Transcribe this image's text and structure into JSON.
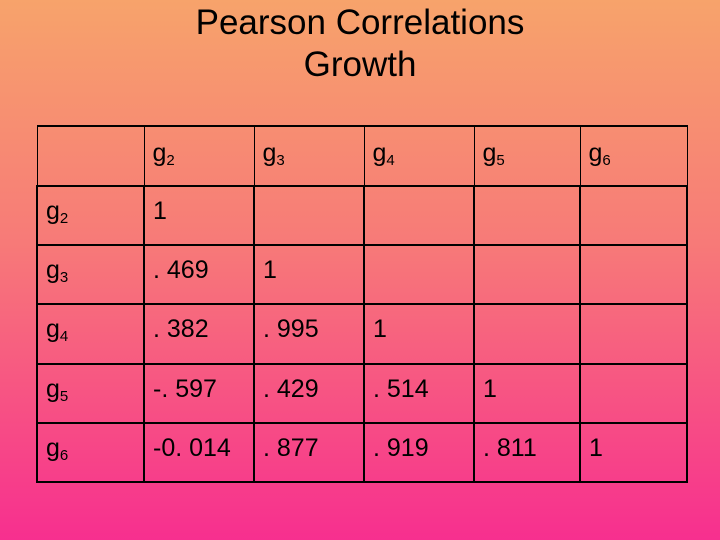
{
  "title": {
    "line1": "Pearson Correlations",
    "line2": "Growth"
  },
  "table": {
    "columns": [
      {
        "base": "g",
        "sub": "2"
      },
      {
        "base": "g",
        "sub": "3"
      },
      {
        "base": "g",
        "sub": "4"
      },
      {
        "base": "g",
        "sub": "5"
      },
      {
        "base": "g",
        "sub": "6"
      }
    ],
    "rows": [
      {
        "label": {
          "base": "g",
          "sub": "2"
        },
        "cells": [
          "1",
          "",
          "",
          "",
          ""
        ]
      },
      {
        "label": {
          "base": "g",
          "sub": "3"
        },
        "cells": [
          ". 469",
          "1",
          "",
          "",
          ""
        ]
      },
      {
        "label": {
          "base": "g",
          "sub": "4"
        },
        "cells": [
          ". 382",
          ". 995",
          "1",
          "",
          ""
        ]
      },
      {
        "label": {
          "base": "g",
          "sub": "5"
        },
        "cells": [
          "-. 597",
          ". 429",
          ". 514",
          "1",
          ""
        ]
      },
      {
        "label": {
          "base": "g",
          "sub": "6"
        },
        "cells": [
          "-0. 014",
          ". 877",
          ". 919",
          ". 811",
          "1"
        ]
      }
    ]
  }
}
